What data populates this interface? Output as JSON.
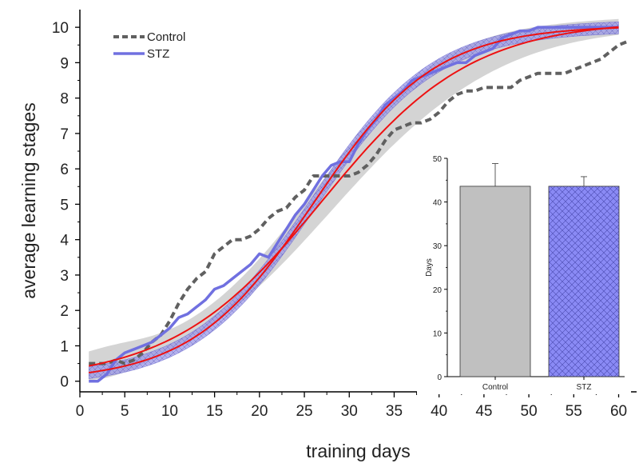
{
  "chart_data": [
    {
      "type": "line",
      "title": "",
      "xlabel": "training days",
      "ylabel": "average learning stages",
      "xlim": [
        0,
        62
      ],
      "ylim": [
        -0.3,
        10.5
      ],
      "xticks": [
        0,
        5,
        10,
        15,
        20,
        25,
        30,
        35,
        40,
        45,
        50,
        55,
        60
      ],
      "yticks": [
        0,
        1,
        2,
        3,
        4,
        5,
        6,
        7,
        8,
        9,
        10
      ],
      "legend": {
        "position": "top-left"
      },
      "colors": {
        "control": "#606060",
        "stz": "#7070e0",
        "fit": "#ee1111",
        "control_band": "#cfcfcf",
        "stz_band": "#7a78d8"
      },
      "series": [
        {
          "name": "Control",
          "style": "dashed",
          "x": [
            1,
            3,
            4,
            5,
            6,
            7,
            8,
            9,
            10,
            11,
            12,
            13,
            14,
            15,
            16,
            17,
            18,
            19,
            20,
            21,
            22,
            23,
            24,
            25,
            26,
            27,
            28,
            29,
            30,
            31,
            32,
            33,
            34,
            35,
            36,
            37,
            38,
            39,
            40,
            41,
            42,
            43,
            44,
            45,
            46,
            47,
            48,
            49,
            50,
            51,
            52,
            53,
            54,
            55,
            56,
            57,
            58,
            59,
            60,
            61
          ],
          "y": [
            0.5,
            0.5,
            0.6,
            0.5,
            0.6,
            0.8,
            1.1,
            1.3,
            1.7,
            2.2,
            2.6,
            2.9,
            3.1,
            3.6,
            3.8,
            4.0,
            4.0,
            4.1,
            4.3,
            4.6,
            4.8,
            4.9,
            5.2,
            5.4,
            5.8,
            5.8,
            5.8,
            5.8,
            5.8,
            5.9,
            6.1,
            6.4,
            6.8,
            7.1,
            7.2,
            7.3,
            7.3,
            7.4,
            7.6,
            7.9,
            8.1,
            8.2,
            8.2,
            8.3,
            8.3,
            8.3,
            8.3,
            8.5,
            8.6,
            8.7,
            8.7,
            8.7,
            8.7,
            8.8,
            8.9,
            9.0,
            9.1,
            9.3,
            9.5,
            9.6
          ]
        },
        {
          "name": "STZ",
          "style": "solid",
          "x": [
            1,
            2,
            3,
            4,
            5,
            6,
            7,
            8,
            9,
            10,
            11,
            12,
            13,
            14,
            15,
            16,
            17,
            18,
            19,
            20,
            21,
            22,
            23,
            24,
            25,
            26,
            27,
            28,
            29,
            30,
            31,
            32,
            33,
            34,
            35,
            36,
            37,
            38,
            39,
            40,
            41,
            42,
            43,
            44,
            45,
            46,
            47,
            48,
            49,
            50,
            51,
            52,
            53,
            54,
            55,
            56,
            57,
            58,
            59,
            60
          ],
          "y": [
            0,
            0,
            0.2,
            0.6,
            0.8,
            0.9,
            1.0,
            1.1,
            1.3,
            1.5,
            1.8,
            1.9,
            2.1,
            2.3,
            2.6,
            2.7,
            2.9,
            3.1,
            3.3,
            3.6,
            3.5,
            3.9,
            4.3,
            4.7,
            5.0,
            5.4,
            5.8,
            6.1,
            6.2,
            6.2,
            6.7,
            7.1,
            7.4,
            7.8,
            8.0,
            8.2,
            8.5,
            8.6,
            8.7,
            8.8,
            8.9,
            9.0,
            9.0,
            9.2,
            9.3,
            9.4,
            9.7,
            9.8,
            9.9,
            9.9,
            10,
            10,
            10,
            10,
            10,
            10,
            10,
            10,
            10,
            10
          ]
        }
      ]
    },
    {
      "type": "bar",
      "title": "",
      "xlabel": "",
      "ylabel": "Days",
      "ylim": [
        0,
        50
      ],
      "yticks": [
        0,
        10,
        20,
        30,
        40,
        50
      ],
      "categories": [
        "Control",
        "STZ"
      ],
      "values": [
        43.6,
        43.6
      ],
      "errors": [
        5.2,
        2.2
      ],
      "colors": [
        "#c0c0c0",
        "#7a7af0"
      ]
    }
  ]
}
